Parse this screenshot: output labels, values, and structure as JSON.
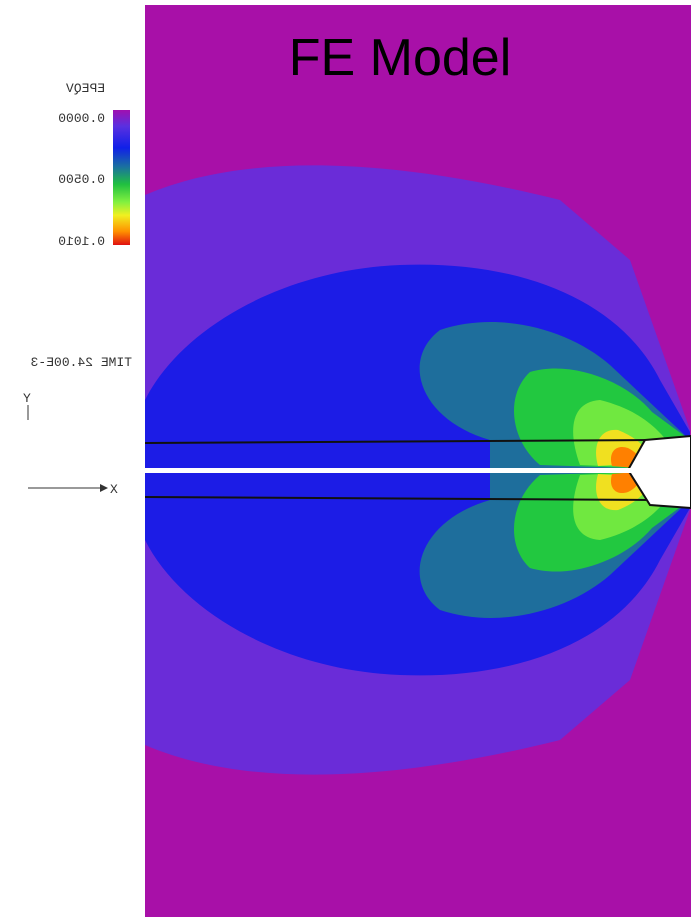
{
  "title": "FE Model",
  "legend": {
    "title": "EPEQV",
    "labels": [
      "0.0000",
      "0.0500",
      "0.1010"
    ]
  },
  "time": "TIME 24.00E-3",
  "axes": {
    "y": "Y",
    "x": "X"
  }
}
